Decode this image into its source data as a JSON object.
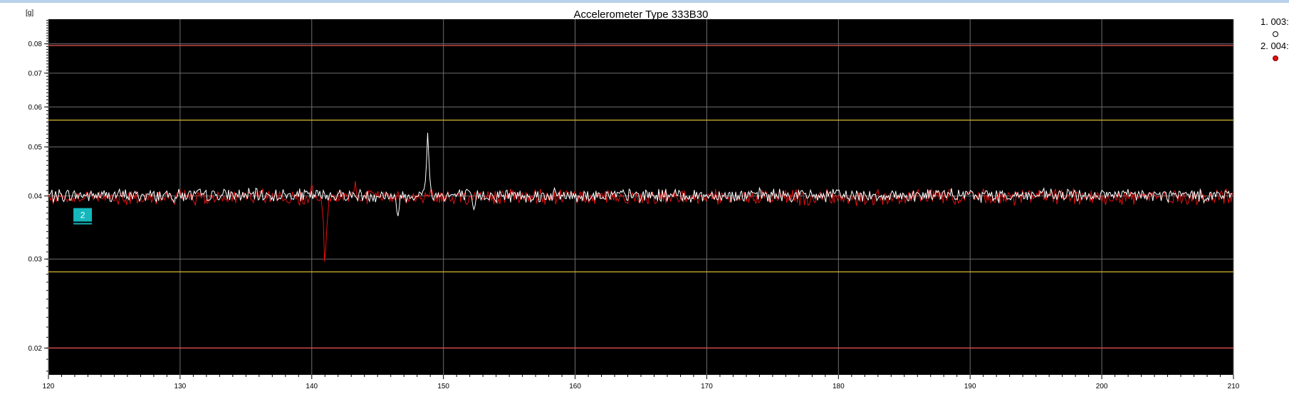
{
  "window": {
    "title": "Accelerometer Type 333B30"
  },
  "colors": {
    "plot_background": "#000000",
    "grid": "#6e6e6e",
    "limit_outer": "#d84a4a",
    "limit_inner": "#c8a830",
    "series_1": "#ffffff",
    "series_2": "#e01010",
    "marker_fill": "#14b8bc"
  },
  "chart_data": {
    "type": "line",
    "title": "Accelerometer Type 333B30",
    "xlabel": "",
    "ylabel": "[g]",
    "y_scale": "log",
    "xlim": [
      120,
      210
    ],
    "ylim": [
      0.0177,
      0.0895
    ],
    "x_ticks": [
      "120",
      "130",
      "140",
      "150",
      "160",
      "170",
      "180",
      "190",
      "200",
      "210"
    ],
    "x_tick_values": [
      120,
      130,
      140,
      150,
      160,
      170,
      180,
      190,
      200,
      210
    ],
    "y_ticks": [
      "0.08",
      "0.07",
      "0.06",
      "0.05",
      "0.04",
      "0.03",
      "0.02"
    ],
    "y_tick_values": [
      0.08,
      0.07,
      0.06,
      0.05,
      0.04,
      0.03,
      0.02
    ],
    "grid": true,
    "legend_position": "top-right",
    "limit_lines": [
      {
        "kind": "outer",
        "value": 0.0794
      },
      {
        "kind": "inner",
        "value": 0.0565
      },
      {
        "kind": "inner",
        "value": 0.0283
      },
      {
        "kind": "outer",
        "value": 0.02
      }
    ],
    "series": [
      {
        "name": "1. 003:",
        "baseline": 0.0401,
        "noise": 0.0012,
        "events": [
          {
            "x": 146.5,
            "y": 0.0362
          },
          {
            "x": 148.8,
            "y": 0.053
          },
          {
            "x": 152.3,
            "y": 0.037
          }
        ]
      },
      {
        "name": "2. 004:",
        "baseline": 0.0398,
        "noise": 0.0014,
        "events": [
          {
            "x": 140.0,
            "y": 0.042
          },
          {
            "x": 141.0,
            "y": 0.0265
          },
          {
            "x": 143.3,
            "y": 0.0428
          }
        ]
      }
    ],
    "annotations": [
      {
        "text": "2",
        "x": 122.6,
        "y": 0.0376
      }
    ]
  }
}
